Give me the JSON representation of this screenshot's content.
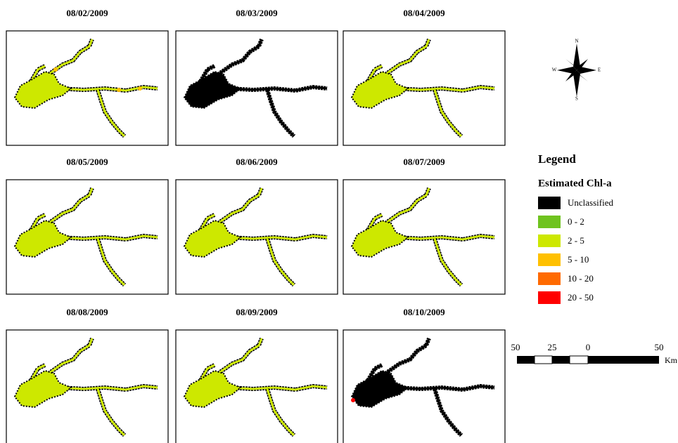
{
  "panels": [
    {
      "date": "08/02/2009"
    },
    {
      "date": "08/03/2009"
    },
    {
      "date": "08/04/2009"
    },
    {
      "date": "08/05/2009"
    },
    {
      "date": "08/06/2009"
    },
    {
      "date": "08/07/2009"
    },
    {
      "date": "08/08/2009"
    },
    {
      "date": "08/09/2009"
    },
    {
      "date": "08/10/2009"
    }
  ],
  "compass": {
    "n": "N",
    "s": "S",
    "e": "E",
    "w": "W"
  },
  "legend": {
    "title": "Legend",
    "subtitle": "Estimated Chl-a",
    "items": [
      {
        "label": "Unclassified",
        "color": "#000000"
      },
      {
        "label": "0 - 2",
        "color": "#6fc31f"
      },
      {
        "label": "2 - 5",
        "color": "#cde800"
      },
      {
        "label": "5 - 10",
        "color": "#ffc000"
      },
      {
        "label": "10 - 20",
        "color": "#ff6a00"
      },
      {
        "label": "20 - 50",
        "color": "#ff0000"
      }
    ]
  },
  "scale_bar": {
    "labels": [
      50,
      25,
      0,
      50
    ],
    "unit": "Km"
  }
}
